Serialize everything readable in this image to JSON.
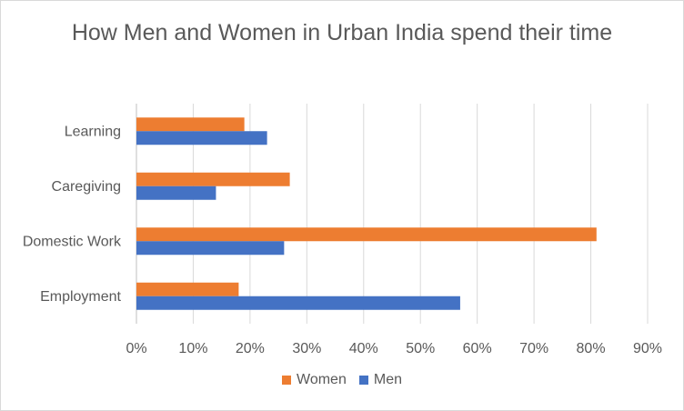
{
  "chart_data": {
    "type": "bar",
    "orientation": "horizontal",
    "title": "How Men and Women in Urban India spend their time",
    "categories": [
      "Learning",
      "Caregiving",
      "Domestic Work",
      "Employment"
    ],
    "series": [
      {
        "name": "Women",
        "color": "#ed7d31",
        "values": [
          19,
          27,
          81,
          18
        ]
      },
      {
        "name": "Men",
        "color": "#4472c4",
        "values": [
          23,
          14,
          26,
          57
        ]
      }
    ],
    "xlim": [
      0,
      90
    ],
    "xticks": [
      0,
      10,
      20,
      30,
      40,
      50,
      60,
      70,
      80,
      90
    ],
    "tick_format": "percent",
    "grid": true,
    "legend_position": "bottom"
  }
}
